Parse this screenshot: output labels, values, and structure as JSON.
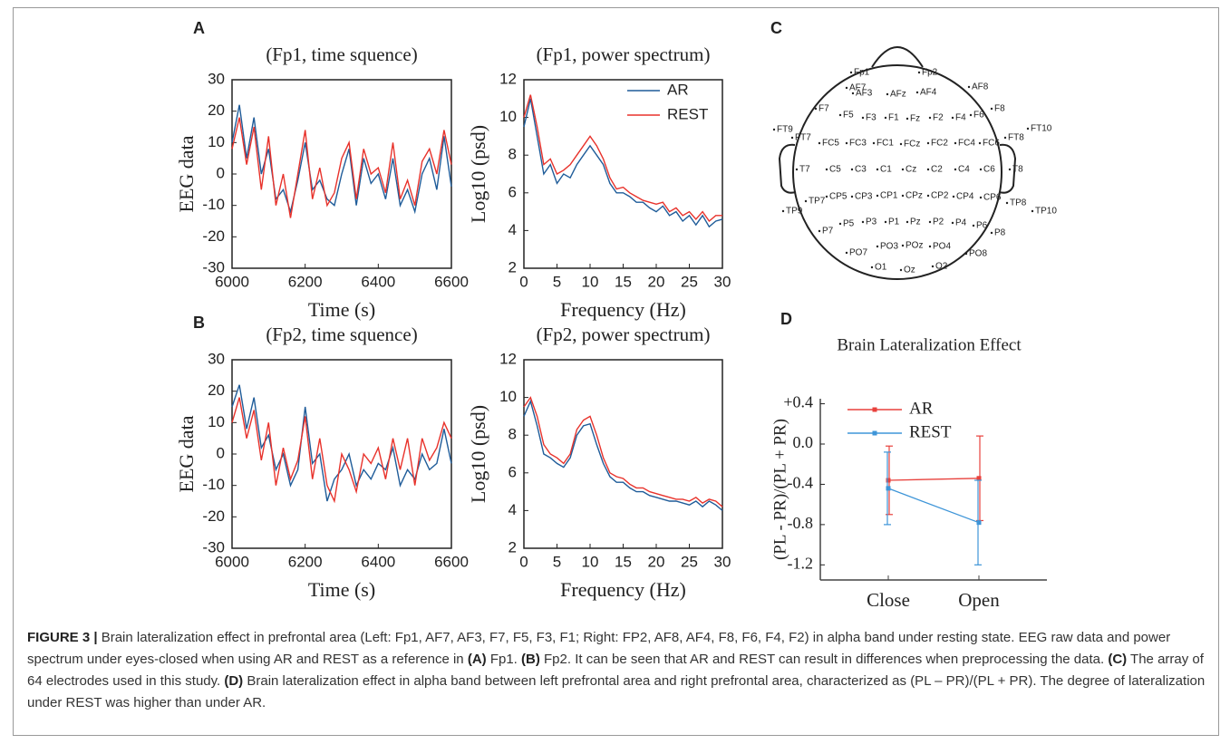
{
  "chart_data": [
    {
      "type": "line",
      "panel": "A",
      "title": "(Fp1, time squence)",
      "x_label": "Time (s)",
      "y_label": "EEG data",
      "x": [
        6000,
        6020,
        6040,
        6060,
        6080,
        6100,
        6120,
        6140,
        6160,
        6180,
        6200,
        6220,
        6240,
        6260,
        6280,
        6300,
        6320,
        6340,
        6360,
        6380,
        6400,
        6420,
        6440,
        6460,
        6480,
        6500,
        6520,
        6540,
        6560,
        6580,
        6600
      ],
      "series": [
        {
          "color": "#1f5c99",
          "values": [
            10,
            22,
            5,
            18,
            0,
            8,
            -8,
            -5,
            -12,
            -2,
            10,
            -5,
            -2,
            -8,
            -10,
            0,
            8,
            -10,
            5,
            -3,
            0,
            -8,
            5,
            -10,
            -5,
            -12,
            0,
            5,
            -5,
            12,
            -4
          ]
        },
        {
          "color": "#e8322b",
          "values": [
            8,
            18,
            3,
            15,
            -5,
            12,
            -10,
            0,
            -14,
            0,
            14,
            -8,
            2,
            -10,
            -6,
            5,
            10,
            -8,
            8,
            0,
            2,
            -6,
            10,
            -8,
            -2,
            -10,
            4,
            8,
            0,
            14,
            3
          ]
        }
      ],
      "xlim": [
        6000,
        6600
      ],
      "xticks": [
        6000,
        6200,
        6400,
        6600
      ],
      "ylim": [
        -30,
        30
      ],
      "yticks": [
        -30,
        -20,
        -10,
        0,
        10,
        20,
        30
      ]
    },
    {
      "type": "line",
      "title": "(Fp1, power spectrum)",
      "x_label": "Frequency (Hz)",
      "y_label": "Log10 (psd)",
      "legend": "upper right",
      "x": [
        0,
        1,
        2,
        3,
        4,
        5,
        6,
        7,
        8,
        9,
        10,
        11,
        12,
        13,
        14,
        15,
        16,
        17,
        18,
        19,
        20,
        21,
        22,
        23,
        24,
        25,
        26,
        27,
        28,
        29,
        30
      ],
      "series": [
        {
          "name": "AR",
          "color": "#1f5c99",
          "values": [
            9.5,
            11,
            9,
            7,
            7.5,
            6.5,
            7,
            6.8,
            7.5,
            8,
            8.5,
            8,
            7.5,
            6.5,
            6,
            6,
            5.8,
            5.5,
            5.5,
            5.2,
            5,
            5.3,
            4.8,
            5,
            4.5,
            4.8,
            4.3,
            4.8,
            4.2,
            4.5,
            4.6
          ]
        },
        {
          "name": "REST",
          "color": "#e8322b",
          "values": [
            10,
            11.2,
            9.5,
            7.5,
            7.8,
            7,
            7.2,
            7.5,
            8,
            8.5,
            9,
            8.5,
            7.8,
            6.8,
            6.2,
            6.3,
            6,
            5.8,
            5.6,
            5.5,
            5.4,
            5.5,
            5,
            5.2,
            4.8,
            5,
            4.6,
            5,
            4.5,
            4.8,
            4.8
          ]
        }
      ],
      "xlim": [
        0,
        30
      ],
      "xticks": [
        0,
        5,
        10,
        15,
        20,
        25,
        30
      ],
      "ylim": [
        2,
        12
      ],
      "yticks": [
        2,
        4,
        6,
        8,
        10,
        12
      ]
    },
    {
      "type": "line",
      "panel": "B",
      "title": "(Fp2, time squence)",
      "x_label": "Time (s)",
      "y_label": "EEG data",
      "x": [
        6000,
        6020,
        6040,
        6060,
        6080,
        6100,
        6120,
        6140,
        6160,
        6180,
        6200,
        6220,
        6240,
        6260,
        6280,
        6300,
        6320,
        6340,
        6360,
        6380,
        6400,
        6420,
        6440,
        6460,
        6480,
        6500,
        6520,
        6540,
        6560,
        6580,
        6600
      ],
      "series": [
        {
          "color": "#1f5c99",
          "values": [
            15,
            22,
            8,
            18,
            2,
            6,
            -5,
            0,
            -10,
            -5,
            15,
            -3,
            0,
            -15,
            -8,
            -5,
            0,
            -10,
            -5,
            -8,
            -3,
            -5,
            2,
            -10,
            -5,
            -8,
            0,
            -5,
            -3,
            8,
            -3
          ]
        },
        {
          "color": "#e8322b",
          "values": [
            10,
            18,
            5,
            14,
            -2,
            10,
            -10,
            2,
            -8,
            -2,
            12,
            -8,
            5,
            -10,
            -15,
            0,
            -5,
            -12,
            0,
            -3,
            2,
            -8,
            5,
            -5,
            5,
            -10,
            5,
            -2,
            2,
            10,
            5
          ]
        }
      ],
      "xlim": [
        6000,
        6600
      ],
      "xticks": [
        6000,
        6200,
        6400,
        6600
      ],
      "ylim": [
        -30,
        30
      ],
      "yticks": [
        -30,
        -20,
        -10,
        0,
        10,
        20,
        30
      ]
    },
    {
      "type": "line",
      "title": "(Fp2, power spectrum)",
      "x_label": "Frequency (Hz)",
      "y_label": "Log10 (psd)",
      "x": [
        0,
        1,
        2,
        3,
        4,
        5,
        6,
        7,
        8,
        9,
        10,
        11,
        12,
        13,
        14,
        15,
        16,
        17,
        18,
        19,
        20,
        21,
        22,
        23,
        24,
        25,
        26,
        27,
        28,
        29,
        30
      ],
      "series": [
        {
          "color": "#1f5c99",
          "values": [
            9,
            9.8,
            8.5,
            7,
            6.8,
            6.5,
            6.3,
            6.8,
            8,
            8.5,
            8.6,
            7.5,
            6.5,
            5.8,
            5.5,
            5.5,
            5.2,
            5,
            5,
            4.8,
            4.7,
            4.6,
            4.5,
            4.5,
            4.4,
            4.3,
            4.5,
            4.2,
            4.5,
            4.3,
            4
          ]
        },
        {
          "color": "#e8322b",
          "values": [
            9.5,
            10,
            9,
            7.5,
            7,
            6.8,
            6.5,
            7,
            8.3,
            8.8,
            9,
            8,
            6.8,
            6,
            5.8,
            5.7,
            5.4,
            5.2,
            5.2,
            5,
            4.9,
            4.8,
            4.7,
            4.6,
            4.6,
            4.5,
            4.7,
            4.4,
            4.6,
            4.5,
            4.2
          ]
        }
      ],
      "xlim": [
        0,
        30
      ],
      "xticks": [
        0,
        5,
        10,
        15,
        20,
        25,
        30
      ],
      "ylim": [
        2,
        12
      ],
      "yticks": [
        2,
        4,
        6,
        8,
        10,
        12
      ]
    },
    {
      "type": "line",
      "panel": "D",
      "title": "Brain Lateralization Effect",
      "y_label": "(PL - PR)/(PL + PR)",
      "legend": "upper left",
      "categories": [
        "Close",
        "Open"
      ],
      "series": [
        {
          "name": "AR",
          "color": "#e8413c",
          "values": [
            -0.36,
            -0.34
          ],
          "errors": [
            0.34,
            0.42
          ]
        },
        {
          "name": "REST",
          "color": "#3e95d8",
          "values": [
            -0.44,
            -0.78
          ],
          "errors": [
            0.36,
            0.42
          ]
        }
      ],
      "ylim": [
        -1.35,
        0.45
      ],
      "yticks": [
        {
          "value": 0.4,
          "label": "+0.4"
        },
        {
          "value": 0,
          "label": "0.0"
        },
        -0.4,
        -0.8,
        -1.2
      ]
    }
  ],
  "electrode_map": {
    "panel": "C",
    "electrodes": [
      "Fp1",
      "Fp2",
      "AF7",
      "AF3",
      "AFz",
      "AF4",
      "AF8",
      "F7",
      "F5",
      "F3",
      "F1",
      "Fz",
      "F2",
      "F4",
      "F6",
      "F8",
      "FT9",
      "FT7",
      "FC5",
      "FC3",
      "FC1",
      "FCz",
      "FC2",
      "FC4",
      "FC6",
      "FT8",
      "FT10",
      "T7",
      "C5",
      "C3",
      "C1",
      "Cz",
      "C2",
      "C4",
      "C6",
      "T8",
      "TP9",
      "TP7",
      "CP5",
      "CP3",
      "CP1",
      "CPz",
      "CP2",
      "CP4",
      "CP6",
      "TP8",
      "TP10",
      "P7",
      "P5",
      "P3",
      "P1",
      "Pz",
      "P2",
      "P4",
      "P6",
      "P8",
      "PO7",
      "PO3",
      "POz",
      "PO4",
      "PO8",
      "O1",
      "Oz",
      "O2"
    ]
  },
  "caption": [
    {
      "text": "FIGURE 3 |",
      "bold": true
    },
    {
      "text": " Brain lateralization effect in prefrontal area (Left: Fp1, AF7, AF3, F7, F5, F3, F1; Right: FP2, AF8, AF4, F8, F6, F4, F2) in alpha band under resting state. EEG raw data and power spectrum under eyes-closed when using AR and REST as a reference in "
    },
    {
      "text": "(A)",
      "bold": true
    },
    {
      "text": " Fp1. "
    },
    {
      "text": "(B)",
      "bold": true
    },
    {
      "text": " Fp2. It can be seen that AR and REST can result in differences when preprocessing the data. "
    },
    {
      "text": "(C)",
      "bold": true
    },
    {
      "text": " The array of 64 electrodes used in this study. "
    },
    {
      "text": "(D)",
      "bold": true
    },
    {
      "text": " Brain lateralization effect in alpha band between left prefrontal area and right prefrontal area, characterized as (PL – PR)/(PL + PR). The degree of lateralization under REST was higher than under AR."
    }
  ]
}
